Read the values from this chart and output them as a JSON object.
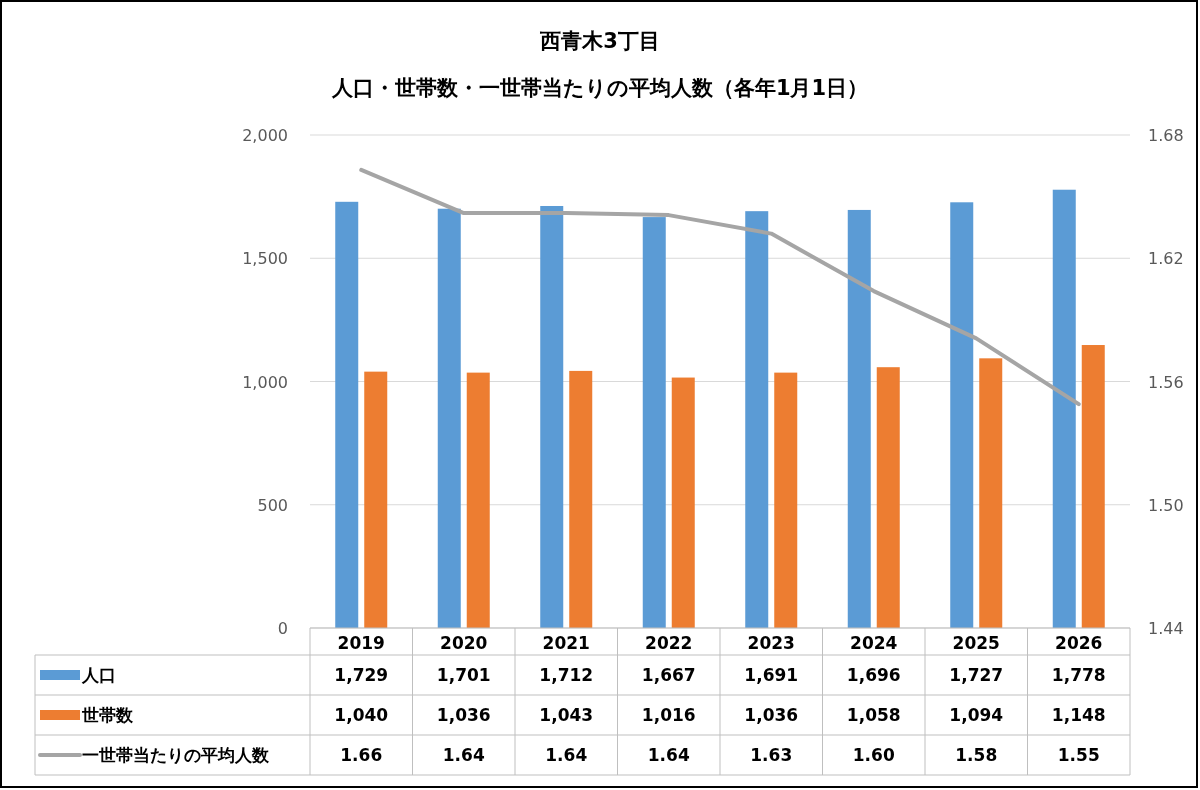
{
  "chart_data": {
    "type": "bar",
    "title": "西青木3丁目",
    "subtitle": "人口・世帯数・一世帯当たりの平均人数（各年1月1日）",
    "categories": [
      "2019",
      "2020",
      "2021",
      "2022",
      "2023",
      "2024",
      "2025",
      "2026"
    ],
    "series": [
      {
        "name": "人口",
        "color": "#5b9bd5",
        "values": [
          1729,
          1701,
          1712,
          1667,
          1691,
          1696,
          1727,
          1778
        ],
        "value_labels": [
          "1,729",
          "1,701",
          "1,712",
          "1,667",
          "1,691",
          "1,696",
          "1,727",
          "1,778"
        ]
      },
      {
        "name": "世帯数",
        "color": "#ed7d31",
        "values": [
          1040,
          1036,
          1043,
          1016,
          1036,
          1058,
          1094,
          1148
        ],
        "value_labels": [
          "1,040",
          "1,036",
          "1,043",
          "1,016",
          "1,036",
          "1,058",
          "1,094",
          "1,148"
        ]
      },
      {
        "name": "一世帯当たりの平均人数",
        "type": "line",
        "axis": "y2",
        "color": "#a5a5a5",
        "values": [
          1.663,
          1.642,
          1.642,
          1.641,
          1.632,
          1.604,
          1.581,
          1.549
        ],
        "value_labels": [
          "1.66",
          "1.64",
          "1.64",
          "1.64",
          "1.63",
          "1.60",
          "1.58",
          "1.55"
        ]
      }
    ],
    "ylim": [
      0,
      2000
    ],
    "yticks": [
      0,
      {
        "value": 500,
        "label": "500"
      },
      {
        "value": 1000,
        "label": "1,000"
      },
      {
        "value": 1500,
        "label": "1,500"
      },
      {
        "value": 2000,
        "label": "2,000"
      }
    ],
    "y2lim": [
      1.44,
      1.68
    ],
    "y2ticks": [
      1.44,
      {
        "value": 1.5,
        "label": "1.50"
      },
      1.56,
      1.62,
      1.68
    ],
    "grid": "y",
    "legend": "bottom"
  }
}
